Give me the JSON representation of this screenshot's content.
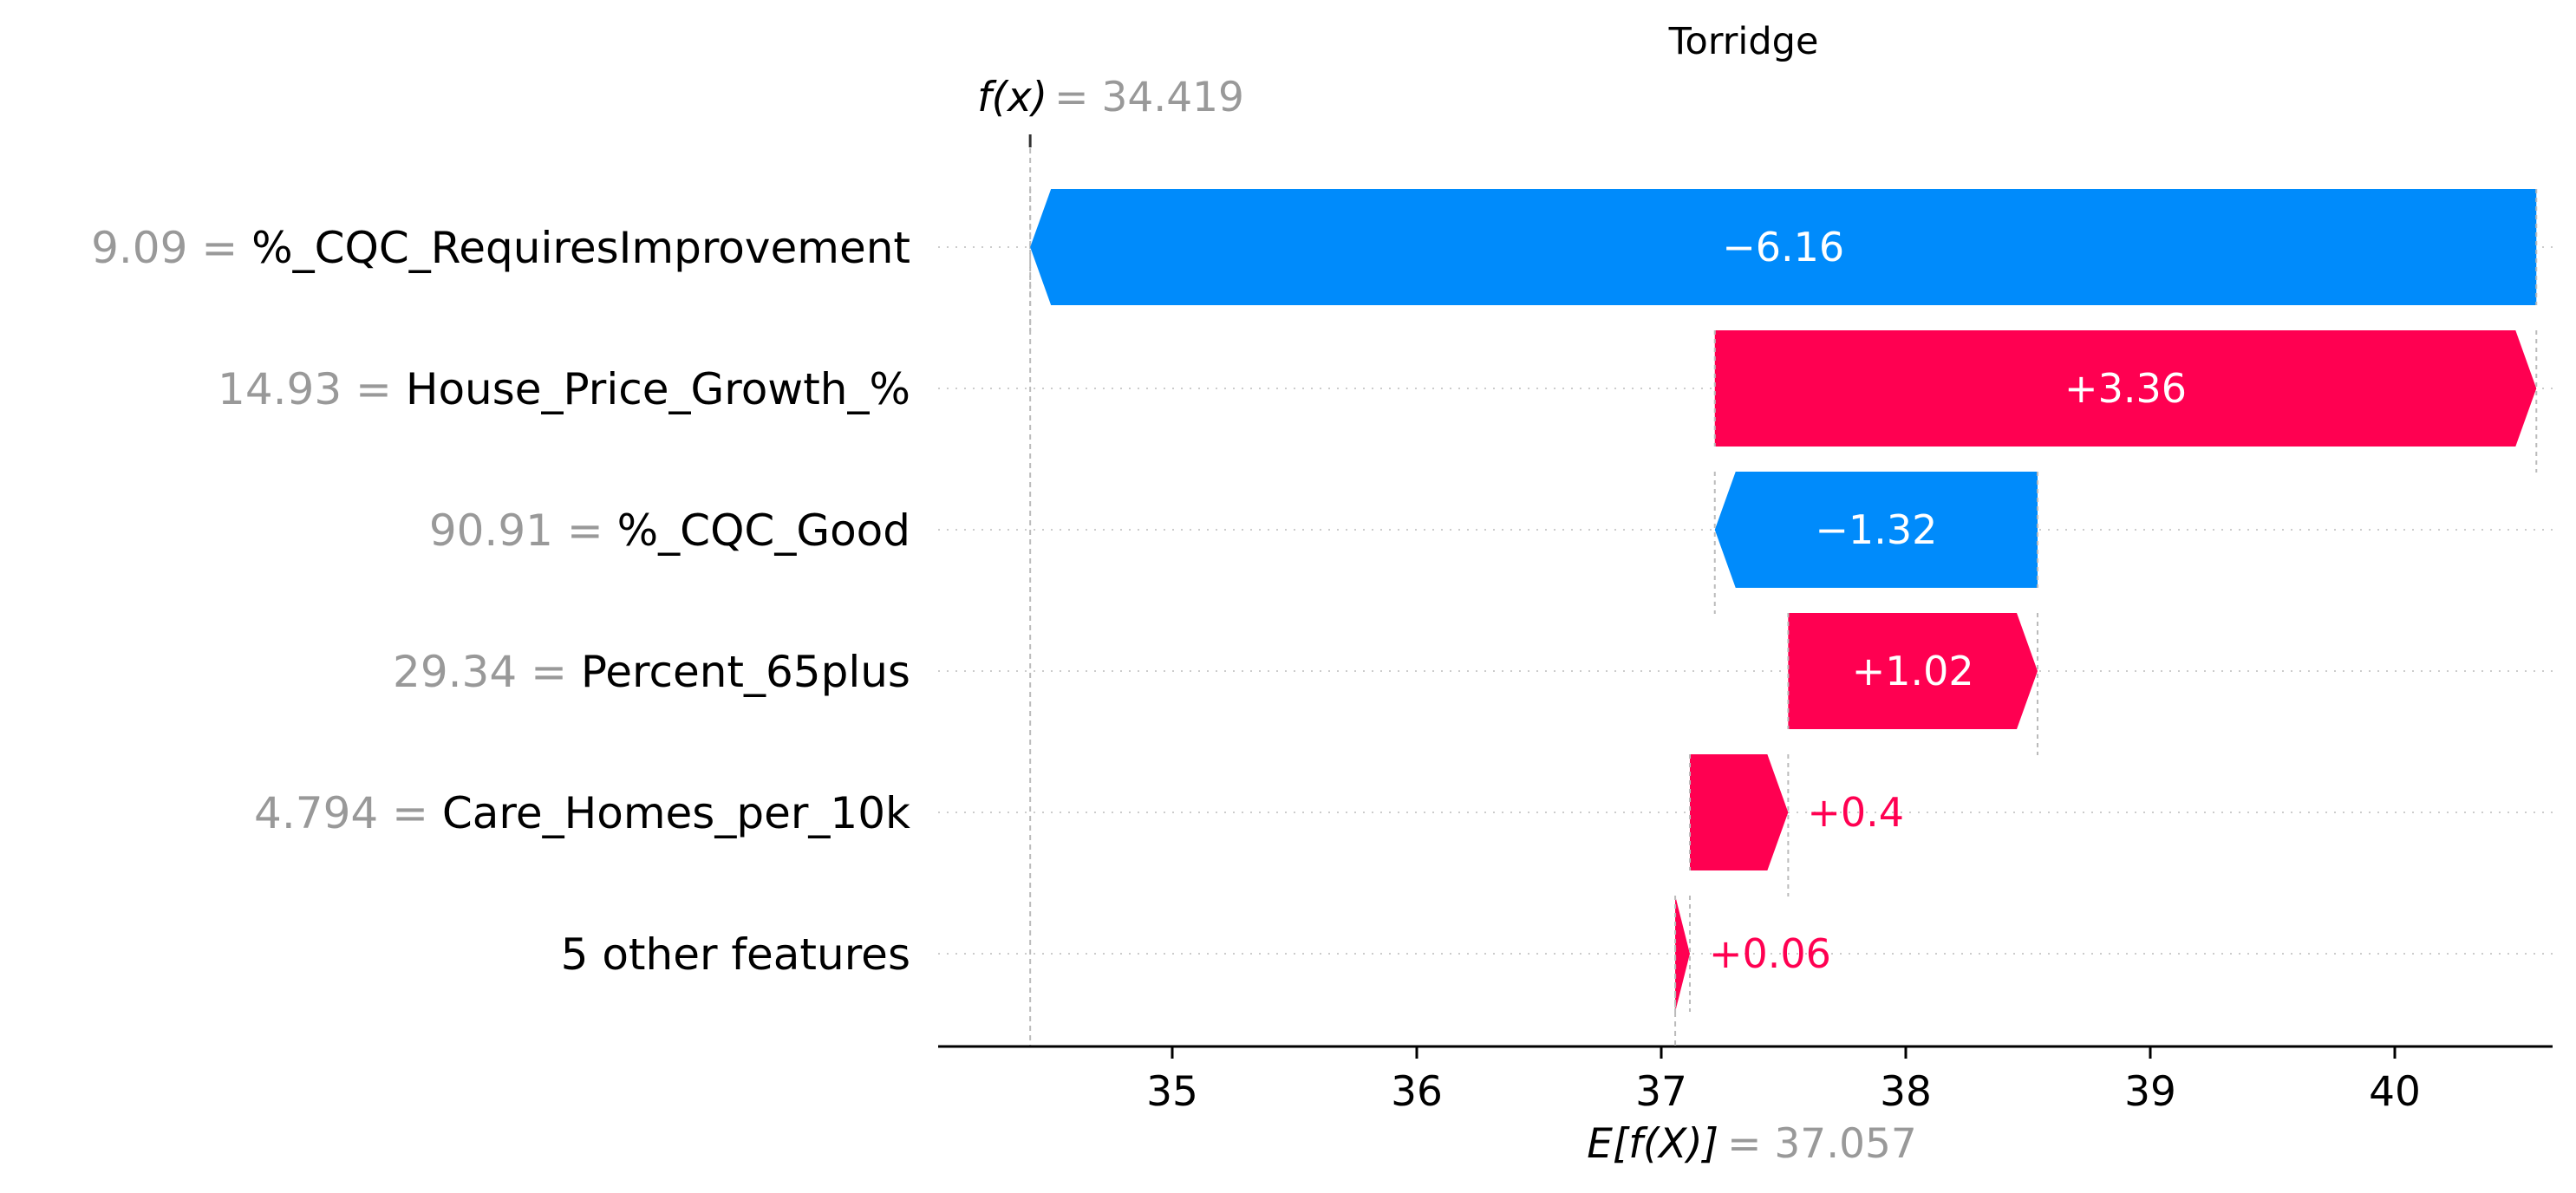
{
  "chart_data": {
    "type": "bar",
    "title": "Torridge",
    "fx_label": "f(x)",
    "fx_value": "34.419",
    "base_label": "E[f(X)]",
    "base_value": "37.057",
    "fx": 34.419,
    "base": 37.057,
    "xlim": [
      34.0,
      40.6
    ],
    "xticks": [
      35,
      36,
      37,
      38,
      39,
      40
    ],
    "xtick_labels": [
      "35",
      "36",
      "37",
      "38",
      "39",
      "40"
    ],
    "grid": false,
    "features": [
      {
        "value_label": "9.09",
        "name": "%_CQC_RequiresImprovement",
        "contribution": -6.16,
        "label": "−6.16",
        "start": 40.579,
        "end": 34.419
      },
      {
        "value_label": "14.93",
        "name": "House_Price_Growth_%",
        "contribution": 3.36,
        "label": "+3.36",
        "start": 37.219,
        "end": 40.579
      },
      {
        "value_label": "90.91",
        "name": "%_CQC_Good",
        "contribution": -1.32,
        "label": "−1.32",
        "start": 38.539,
        "end": 37.219
      },
      {
        "value_label": "29.34",
        "name": "Percent_65plus",
        "contribution": 1.02,
        "label": "+1.02",
        "start": 37.519,
        "end": 38.539
      },
      {
        "value_label": "4.794",
        "name": "Care_Homes_per_10k",
        "contribution": 0.4,
        "label": "+0.4",
        "start": 37.117,
        "end": 37.519
      },
      {
        "value_label": "",
        "name": "5 other features",
        "contribution": 0.06,
        "label": "+0.06",
        "start": 37.057,
        "end": 37.117
      }
    ],
    "colors": {
      "positive": "#ff0051",
      "negative": "#008bfb",
      "value_gray": "#999999",
      "connector": "#bbbbbb"
    }
  }
}
